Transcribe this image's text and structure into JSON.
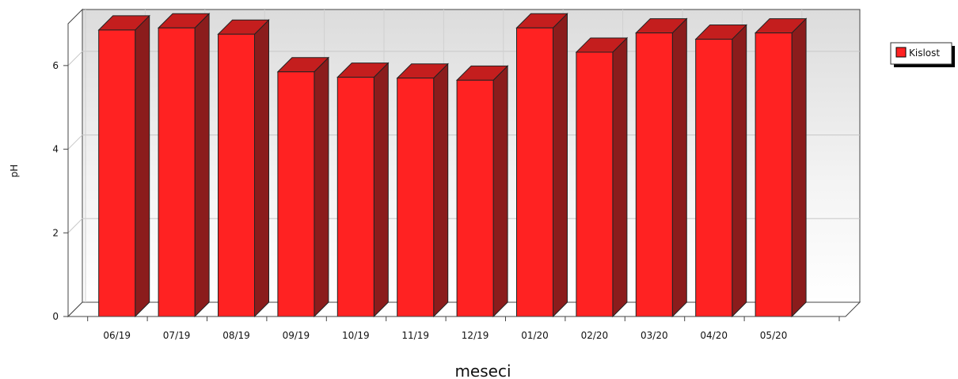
{
  "chart_data": {
    "type": "bar",
    "categories": [
      "06/19",
      "07/19",
      "08/19",
      "09/19",
      "10/19",
      "11/19",
      "12/19",
      "01/20",
      "02/20",
      "03/20",
      "04/20",
      "05/20"
    ],
    "series": [
      {
        "name": "Kislost",
        "values": [
          6.85,
          6.9,
          6.75,
          5.85,
          5.72,
          5.7,
          5.65,
          6.9,
          6.32,
          6.78,
          6.63,
          6.78
        ],
        "color": "#ff2222"
      }
    ],
    "title": "",
    "xlabel": "meseci",
    "ylabel": "pH",
    "ylim": [
      0,
      7
    ],
    "yticks": [
      "0",
      "2",
      "4",
      "6"
    ],
    "grid": true,
    "legend": "top-right",
    "style": "3d-bar"
  }
}
